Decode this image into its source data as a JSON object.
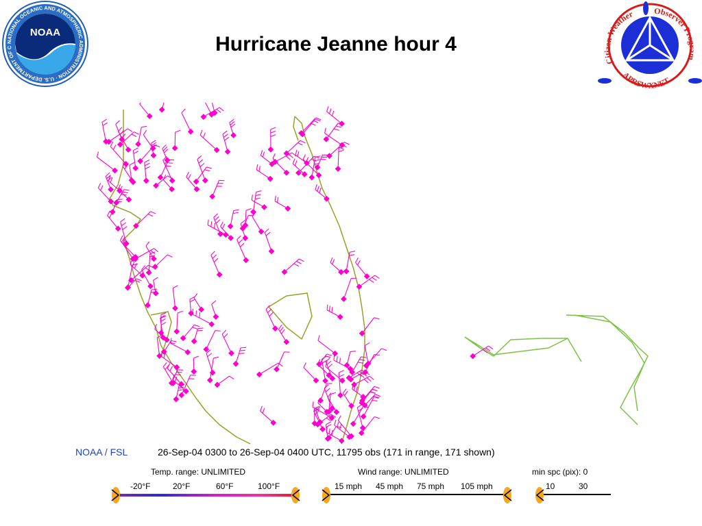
{
  "title": "Hurricane Jeanne hour 4",
  "noaa_logo": {
    "center_text": "NOAA",
    "ring_text": "NATIONAL OCEANIC AND ATMOSPHERIC ADMINISTRATION · U.S. DEPARTMENT OF COMMERCE ·"
  },
  "cwop_logo": {
    "arc_left": "Citizen Weather",
    "arc_right": "Observer Program",
    "arc_bottom": "APRSWXNET"
  },
  "map_colors": {
    "coast": "#9aa024",
    "station": "#ff00cc",
    "track": "#7cc242"
  },
  "footer": {
    "source": "NOAA / FSL",
    "time_range": "26-Sep-04 0300 to 26-Sep-04 0400 UTC, 11795 obs  (171 in range, 171 shown)",
    "temp_range_label": "Temp. range:  UNLIMITED",
    "temp_ticks": [
      "-20°F",
      "20°F",
      "60°F",
      "100°F"
    ],
    "wind_range_label": "Wind range:  UNLIMITED",
    "wind_ticks": [
      "15 mph",
      "45 mph",
      "75 mph",
      "105 mph"
    ],
    "spacing_label": "min spc (pix): 0",
    "spacing_ticks": [
      "10",
      "30"
    ]
  }
}
